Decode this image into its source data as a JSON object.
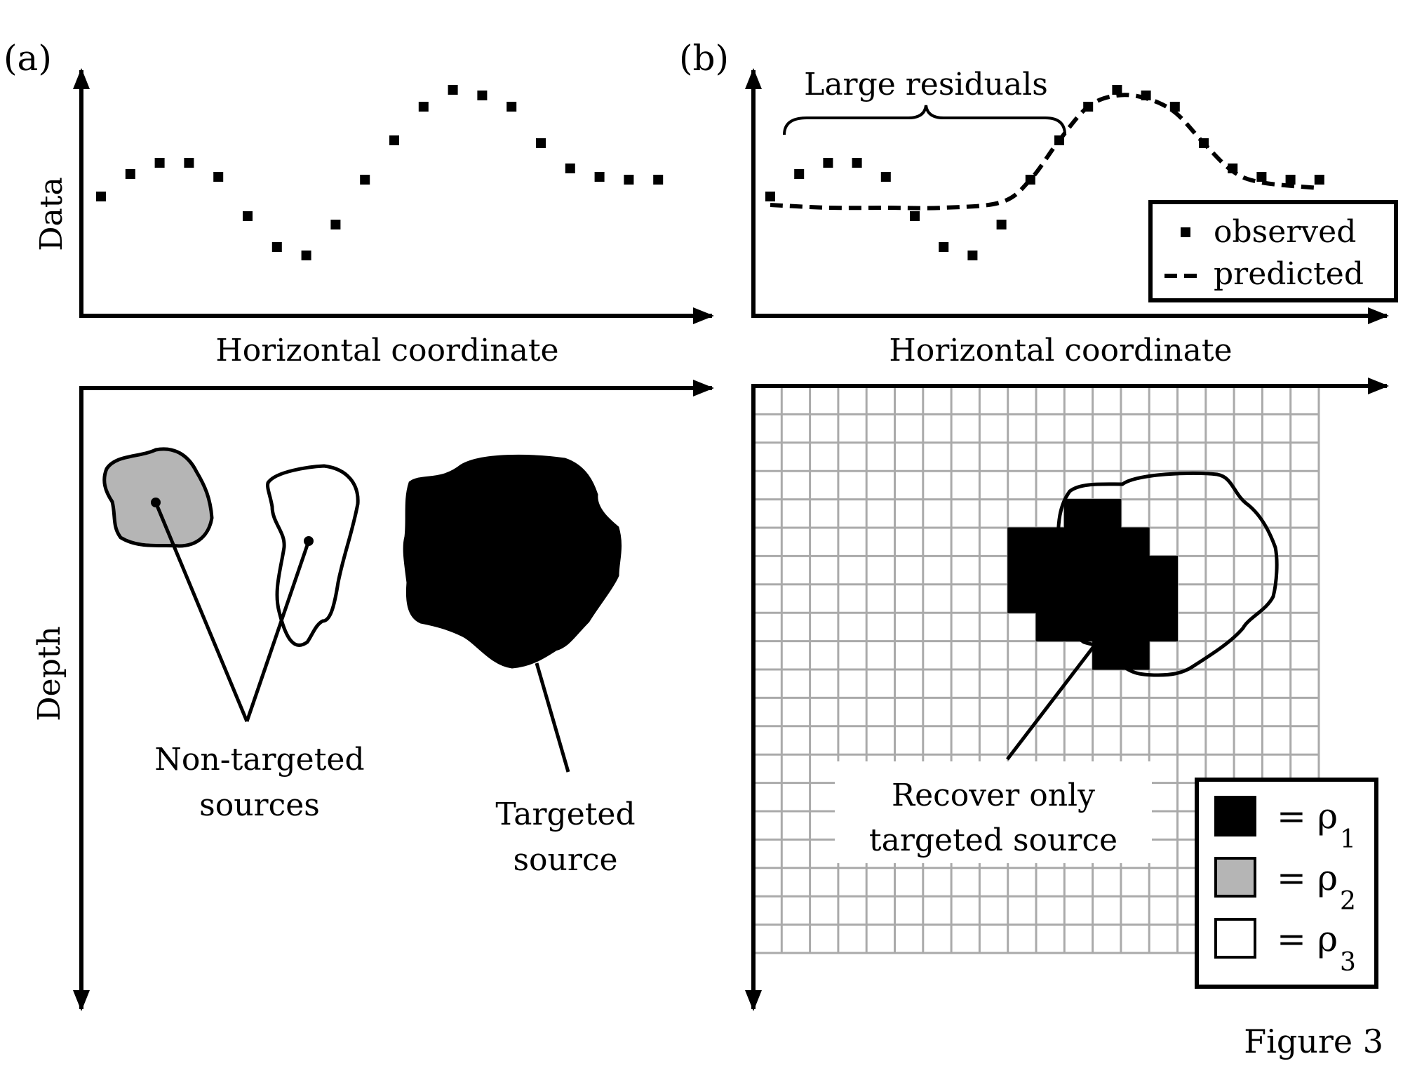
{
  "figure_label": "Figure 3",
  "colors": {
    "ink": "#000000",
    "grid": "#aaaaaa",
    "rho2_fill": "#b5b5b5",
    "rho3_fill": "#ffffff"
  },
  "panel_a": {
    "label": "(a)",
    "y_axis_label": "Data",
    "x_axis_label": "Horizontal coordinate",
    "depth_label": "Depth",
    "non_targeted_label": [
      "Non-targeted",
      "sources"
    ],
    "targeted_label": [
      "Targeted",
      "source"
    ]
  },
  "panel_b": {
    "label": "(b)",
    "residual_label": "Large residuals",
    "x_axis_label": "Horizontal coordinate",
    "legend": {
      "observed": "observed",
      "predicted": "predicted"
    },
    "recover_label": [
      "Recover only",
      "targeted source"
    ],
    "density_legend": [
      {
        "symbol": "= ρ",
        "subscript": "1",
        "swatch": "black"
      },
      {
        "symbol": "= ρ",
        "subscript": "2",
        "swatch": "gray"
      },
      {
        "symbol": "= ρ",
        "subscript": "3",
        "swatch": "white"
      }
    ]
  },
  "chart_data": [
    {
      "type": "scatter",
      "panel": "a",
      "ylabel": "Data",
      "xlabel": "Horizontal coordinate",
      "series": [
        {
          "name": "",
          "x": [
            1,
            2,
            3,
            4,
            5,
            6,
            7,
            8,
            9,
            10,
            11,
            12,
            13,
            14,
            15,
            16,
            17,
            18,
            19,
            20
          ],
          "y": [
            4.3,
            5.1,
            5.5,
            5.5,
            5.0,
            3.6,
            2.5,
            2.2,
            3.3,
            4.9,
            6.3,
            7.5,
            8.1,
            7.9,
            7.5,
            6.2,
            5.3,
            5.0,
            4.9,
            4.9
          ]
        }
      ]
    },
    {
      "type": "scatter",
      "panel": "b",
      "xlabel": "Horizontal coordinate",
      "series": [
        {
          "name": "observed",
          "x": [
            1,
            2,
            3,
            4,
            5,
            6,
            7,
            8,
            9,
            10,
            11,
            12,
            13,
            14,
            15,
            16,
            17,
            18,
            19,
            20
          ],
          "y": [
            4.3,
            5.1,
            5.5,
            5.5,
            5.0,
            3.6,
            2.5,
            2.2,
            3.3,
            4.9,
            6.3,
            7.5,
            8.1,
            7.9,
            7.5,
            6.2,
            5.3,
            5.0,
            4.9,
            4.9
          ]
        },
        {
          "name": "predicted",
          "x": [
            1,
            3,
            5,
            7,
            9,
            10,
            11,
            12,
            13,
            14,
            15,
            16,
            17,
            18,
            20
          ],
          "y": [
            4.0,
            3.9,
            3.9,
            3.9,
            4.1,
            4.9,
            6.3,
            7.5,
            7.9,
            7.8,
            7.3,
            6.2,
            5.2,
            4.8,
            4.6
          ]
        }
      ]
    }
  ]
}
